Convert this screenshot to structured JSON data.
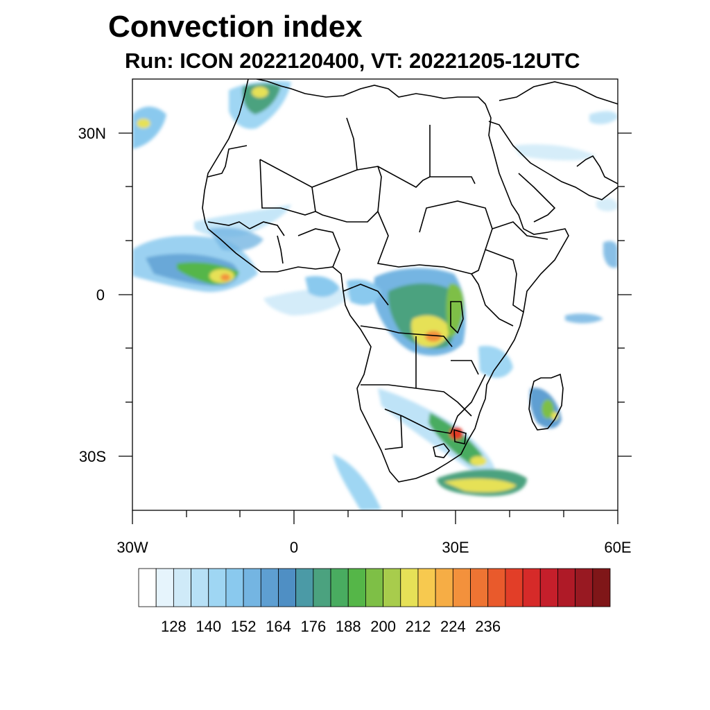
{
  "title": "Convection index",
  "subtitle": "Run: ICON 2022120400,  VT: 20221205-12UTC",
  "map": {
    "lat_labels": [
      "30N",
      "0",
      "30S"
    ],
    "lon_labels": [
      "30W",
      "0",
      "30E",
      "60E"
    ],
    "lon_range": [
      -30,
      60
    ],
    "lat_range": [
      -40,
      40
    ]
  },
  "colorbar": {
    "labels": [
      "128",
      "140",
      "152",
      "164",
      "176",
      "188",
      "200",
      "212",
      "224",
      "236"
    ],
    "colors": [
      "#ffffff",
      "#e6f4fc",
      "#cfeaf8",
      "#b7e0f6",
      "#9fd6f3",
      "#8ac9ee",
      "#74b5e2",
      "#5e9fd2",
      "#4f8fc4",
      "#4b9aa6",
      "#4ba27f",
      "#49ac60",
      "#55b648",
      "#7ebf46",
      "#a8cc4c",
      "#e6e157",
      "#f7c94f",
      "#f6ad45",
      "#f3913c",
      "#ee7433",
      "#e95a2c",
      "#e23e28",
      "#d62a29",
      "#c51f2b",
      "#af1a27",
      "#981922",
      "#7f1618"
    ]
  }
}
